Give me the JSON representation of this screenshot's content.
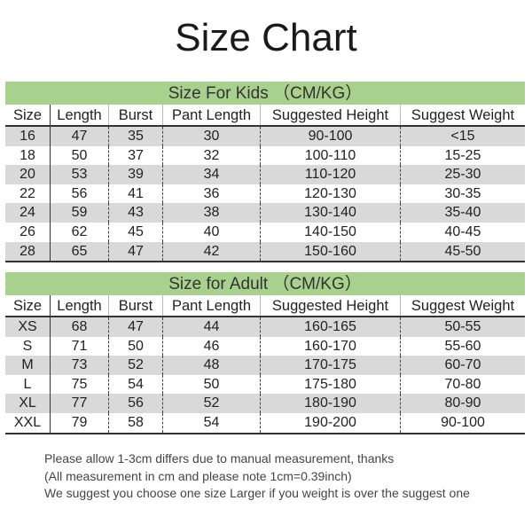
{
  "title": "Size Chart",
  "columns": [
    "Size",
    "Length",
    "Burst",
    "Pant Length",
    "Suggested Height",
    "Suggest Weight"
  ],
  "kids": {
    "heading": "Size For Kids （CM/KG）",
    "rows": [
      [
        "16",
        "47",
        "35",
        "30",
        "90-100",
        "<15"
      ],
      [
        "18",
        "50",
        "37",
        "32",
        "100-110",
        "15-25"
      ],
      [
        "20",
        "53",
        "39",
        "34",
        "110-120",
        "25-30"
      ],
      [
        "22",
        "56",
        "41",
        "36",
        "120-130",
        "30-35"
      ],
      [
        "24",
        "59",
        "43",
        "38",
        "130-140",
        "35-40"
      ],
      [
        "26",
        "62",
        "45",
        "40",
        "140-150",
        "40-45"
      ],
      [
        "28",
        "65",
        "47",
        "42",
        "150-160",
        "45-50"
      ]
    ]
  },
  "adult": {
    "heading": "Size for Adult （CM/KG）",
    "rows": [
      [
        "XS",
        "68",
        "47",
        "44",
        "160-165",
        "50-55"
      ],
      [
        "S",
        "71",
        "50",
        "46",
        "160-170",
        "55-60"
      ],
      [
        "M",
        "73",
        "52",
        "48",
        "170-175",
        "60-70"
      ],
      [
        "L",
        "75",
        "54",
        "50",
        "175-180",
        "70-80"
      ],
      [
        "XL",
        "77",
        "56",
        "52",
        "180-190",
        "80-90"
      ],
      [
        "XXL",
        "79",
        "58",
        "54",
        "190-200",
        "90-100"
      ]
    ]
  },
  "notes": [
    "Please allow 1-3cm differs due to manual measurement, thanks",
    "(All measurement in cm and please note 1cm=0.39inch)",
    "We suggest you choose one size Larger if you weight is over the suggest one"
  ],
  "colors": {
    "band": "#a9d18e",
    "stripe": "#d9d9d9"
  }
}
